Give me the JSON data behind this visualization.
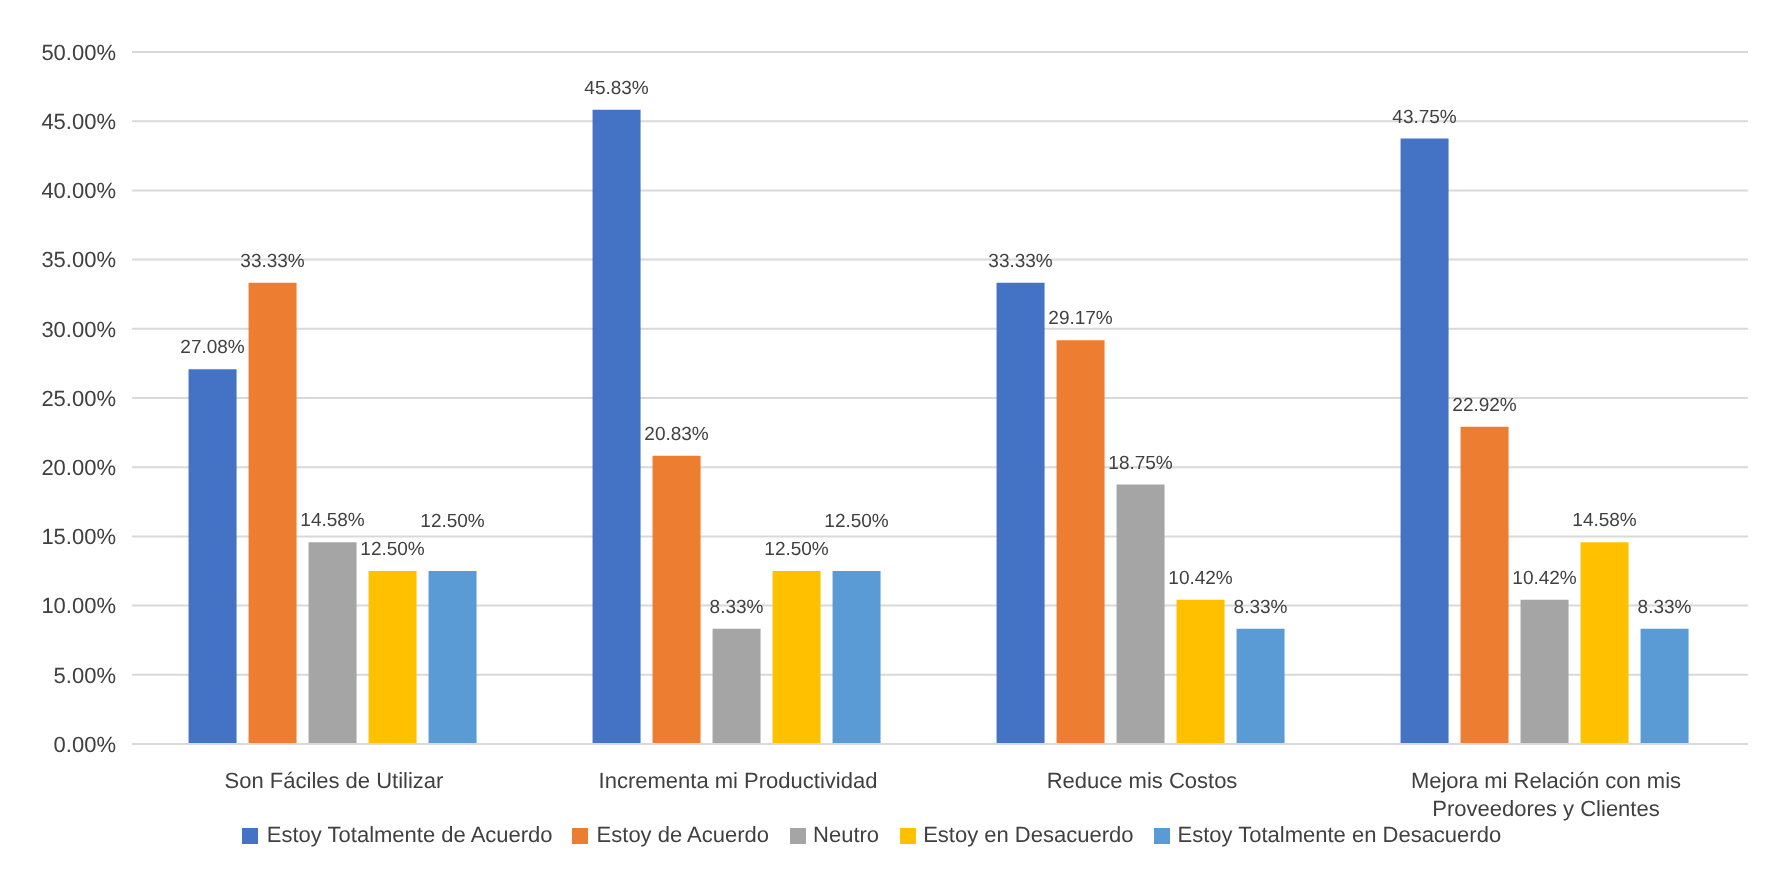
{
  "chart_data": {
    "type": "bar",
    "categories": [
      "Son Fáciles de Utilizar",
      "Incrementa mi Productividad",
      "Reduce mis Costos",
      "Mejora mi Relación con mis Proveedores y Clientes"
    ],
    "series": [
      {
        "name": "Estoy Totalmente de Acuerdo",
        "color": "#4472c4",
        "values": [
          27.08,
          45.83,
          33.33,
          43.75
        ],
        "value_labels": [
          "27.08%",
          "45.83%",
          "33.33%",
          "43.75%"
        ]
      },
      {
        "name": "Estoy de Acuerdo",
        "color": "#ed7d31",
        "values": [
          33.33,
          20.83,
          29.17,
          22.92
        ],
        "value_labels": [
          "33.33%",
          "20.83%",
          "29.17%",
          "22.92%"
        ]
      },
      {
        "name": "Neutro",
        "color": "#a5a5a5",
        "values": [
          14.58,
          8.33,
          18.75,
          10.42
        ],
        "value_labels": [
          "14.58%",
          "8.33%",
          "18.75%",
          "10.42%"
        ]
      },
      {
        "name": "Estoy en Desacuerdo",
        "color": "#ffc000",
        "values": [
          12.5,
          12.5,
          10.42,
          14.58
        ],
        "value_labels": [
          "12.50%",
          "12.50%",
          "10.42%",
          "14.58%"
        ]
      },
      {
        "name": "Estoy Totalmente en Desacuerdo",
        "color": "#5b9bd5",
        "values": [
          12.5,
          12.5,
          8.33,
          8.33
        ],
        "value_labels": [
          "12.50%",
          "12.50%",
          "8.33%",
          "8.33%"
        ]
      }
    ],
    "ylim": [
      0,
      50
    ],
    "yticks": [
      {
        "value": 0,
        "label": "0.00%"
      },
      {
        "value": 5,
        "label": "5.00%"
      },
      {
        "value": 10,
        "label": "10.00%"
      },
      {
        "value": 15,
        "label": "15.00%"
      },
      {
        "value": 20,
        "label": "20.00%"
      },
      {
        "value": 25,
        "label": "25.00%"
      },
      {
        "value": 30,
        "label": "30.00%"
      },
      {
        "value": 35,
        "label": "35.00%"
      },
      {
        "value": 40,
        "label": "40.00%"
      },
      {
        "value": 45,
        "label": "45.00%"
      },
      {
        "value": 50,
        "label": "50.00%"
      }
    ],
    "grid": "y",
    "legend": "bottom"
  }
}
